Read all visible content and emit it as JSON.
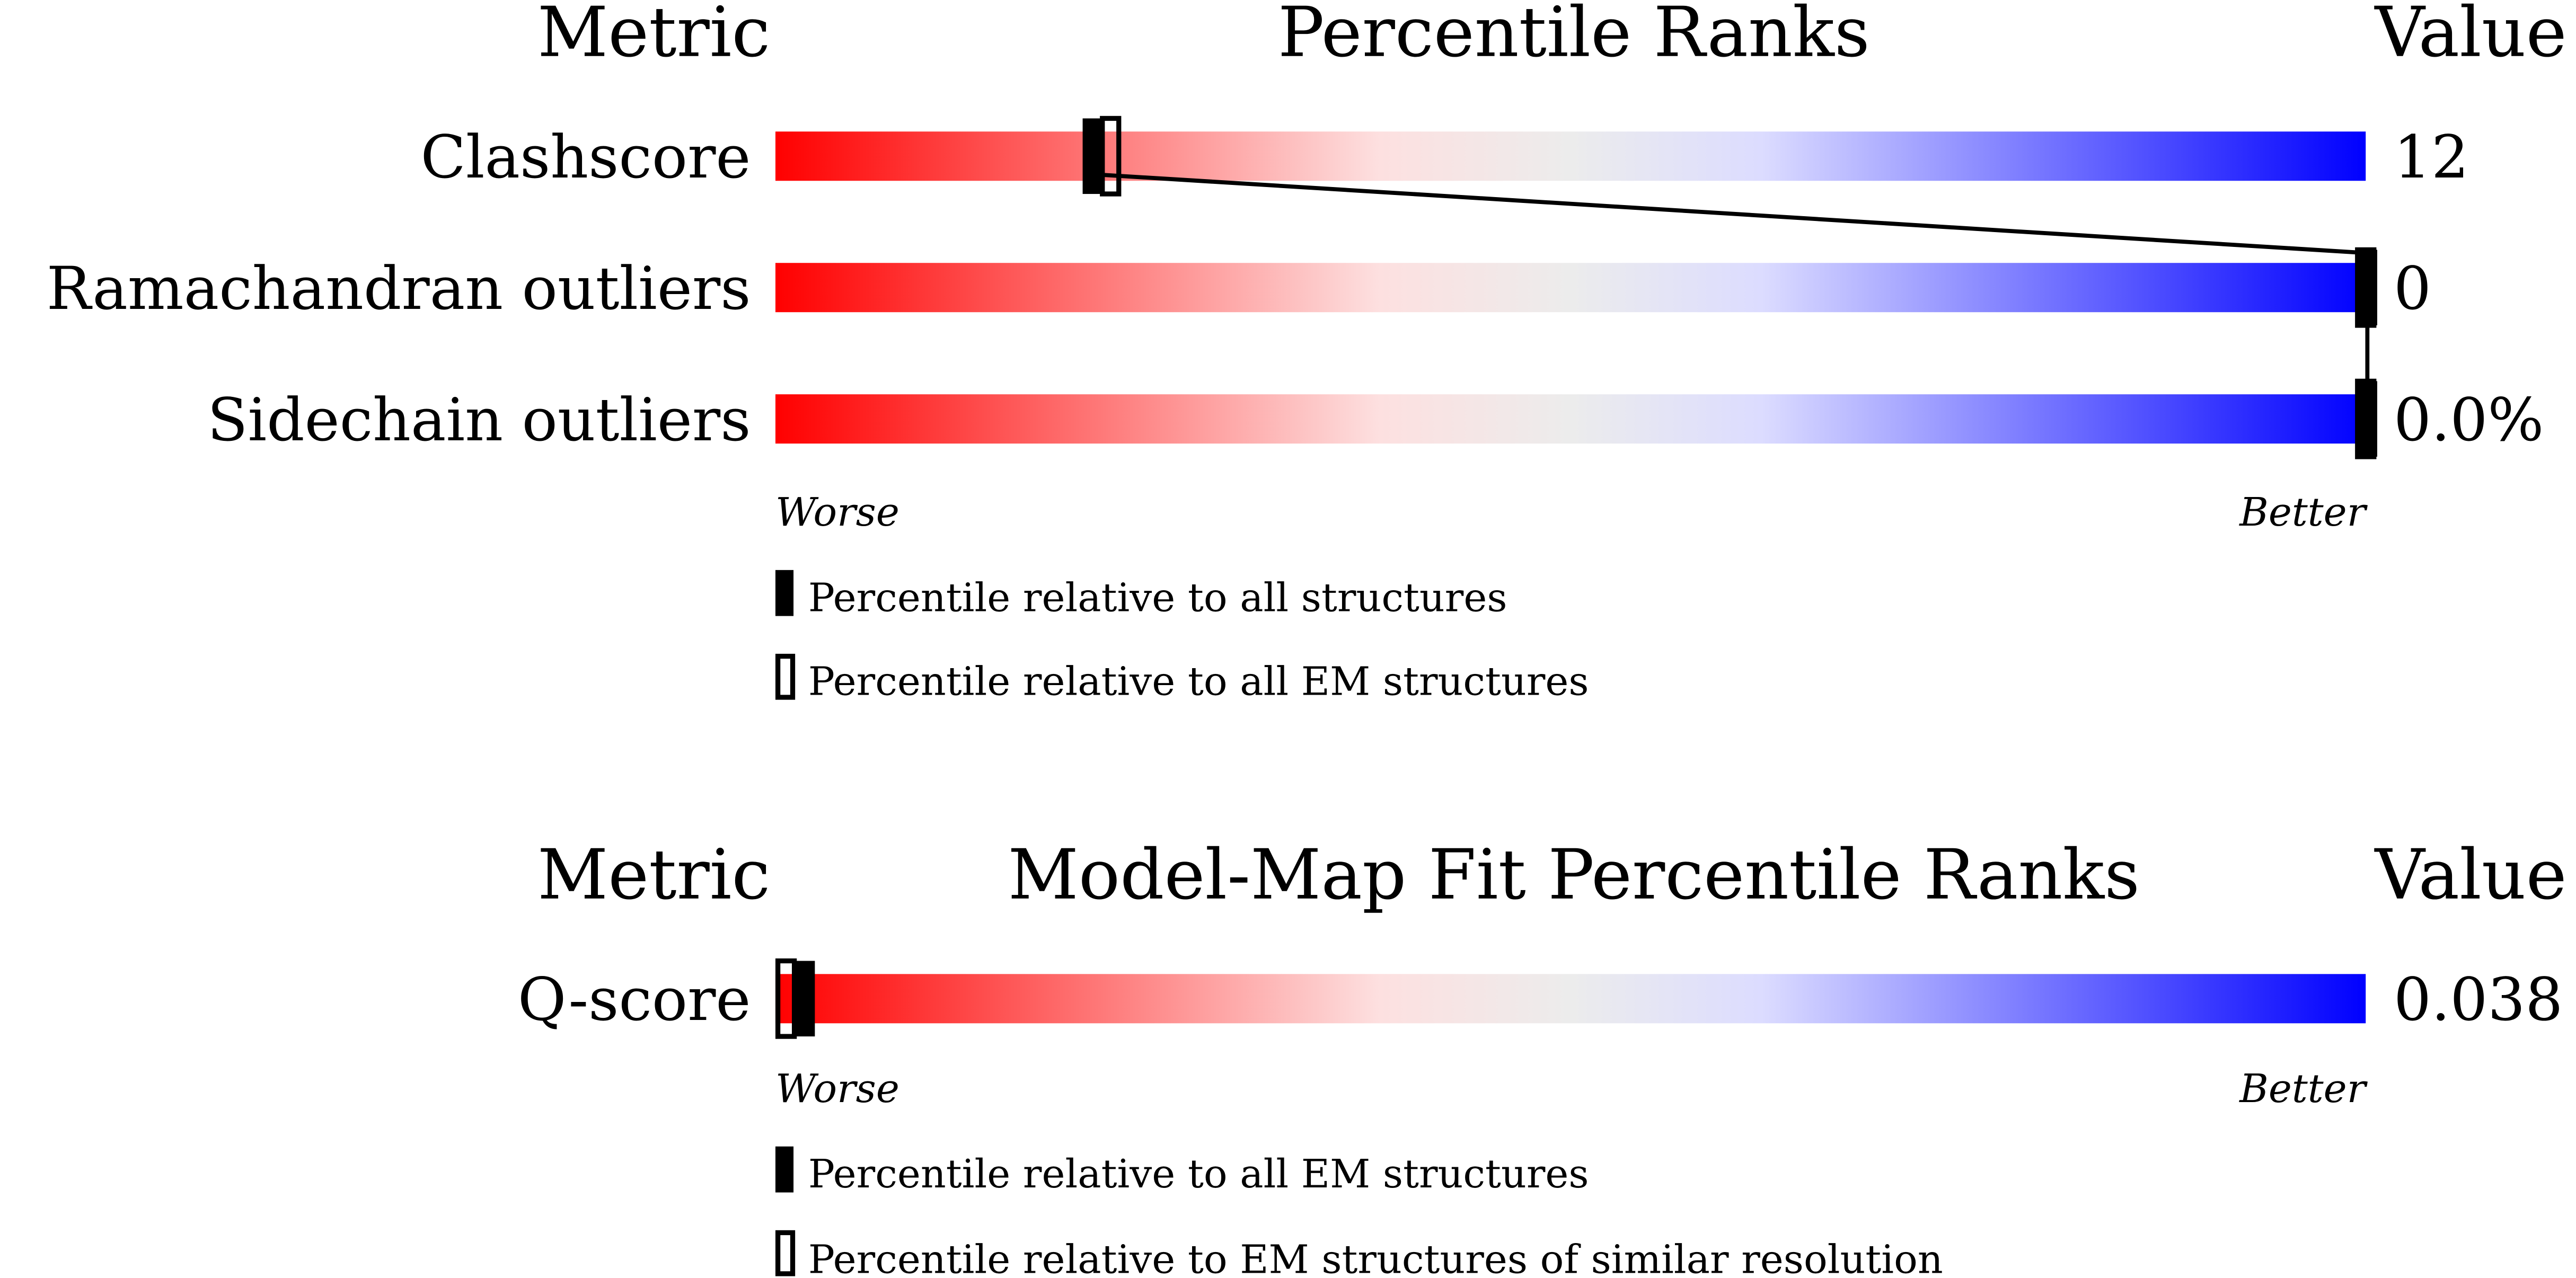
{
  "chart_data": [
    {
      "type": "percentile-bar",
      "headers": {
        "metric": "Metric",
        "title": "Percentile Ranks",
        "value": "Value"
      },
      "xlim": [
        0,
        100
      ],
      "axis_labels": {
        "left": "Worse",
        "right": "Better"
      },
      "rows": [
        {
          "metric": "Clashscore",
          "value": "12",
          "percentile_all": 20,
          "percentile_em": 21
        },
        {
          "metric": "Ramachandran outliers",
          "value": "0",
          "percentile_all": 100,
          "percentile_em": 100
        },
        {
          "metric": "Sidechain outliers",
          "value": "0.0%",
          "percentile_all": 100,
          "percentile_em": 100
        }
      ],
      "legend": [
        {
          "marker": "filled",
          "label": "Percentile relative to all structures"
        },
        {
          "marker": "open",
          "label": "Percentile relative to all EM structures"
        }
      ],
      "gradient_colors": [
        "#ff0000",
        "#fde0e0",
        "#ececec",
        "#dcdcff",
        "#0000ff"
      ]
    },
    {
      "type": "percentile-bar",
      "headers": {
        "metric": "Metric",
        "title": "Model-Map Fit Percentile Ranks",
        "value": "Value"
      },
      "xlim": [
        0,
        100
      ],
      "axis_labels": {
        "left": "Worse",
        "right": "Better"
      },
      "rows": [
        {
          "metric": "Q-score",
          "value": "0.038",
          "percentile_all": 2,
          "percentile_em": 1
        }
      ],
      "legend": [
        {
          "marker": "filled",
          "label": "Percentile relative to all EM structures"
        },
        {
          "marker": "open",
          "label": "Percentile relative to EM structures of similar resolution"
        }
      ],
      "gradient_colors": [
        "#ff0000",
        "#fde0e0",
        "#ececec",
        "#dcdcff",
        "#0000ff"
      ]
    }
  ]
}
